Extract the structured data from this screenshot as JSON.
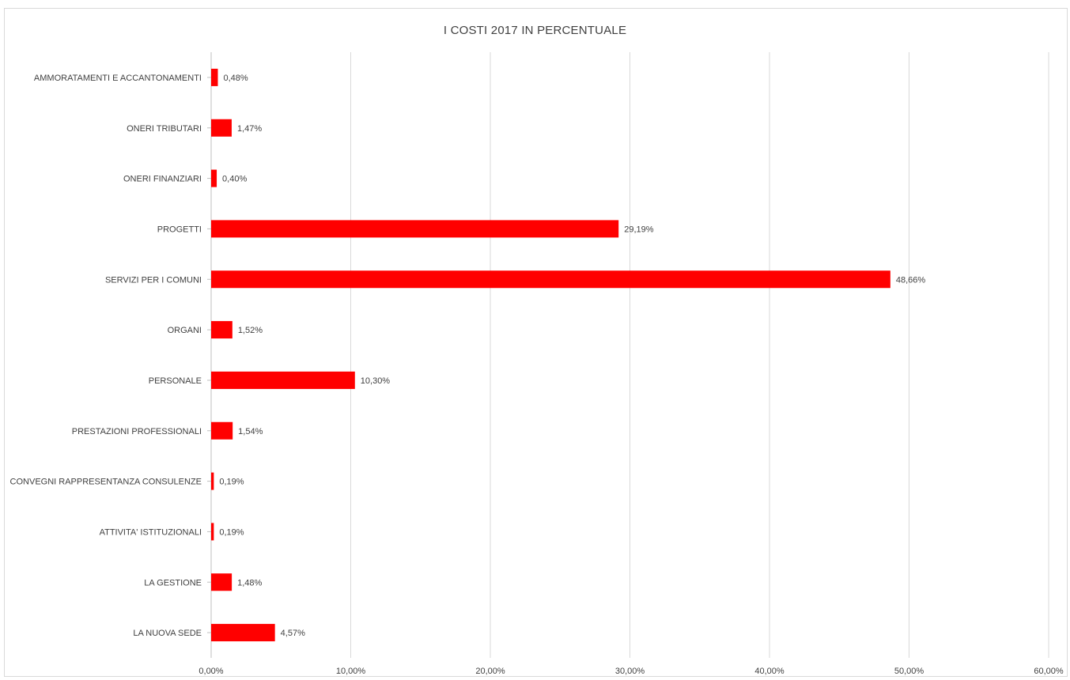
{
  "chart_data": {
    "type": "bar",
    "orientation": "horizontal",
    "title": "I COSTI 2017 IN PERCENTUALE",
    "xlabel": "",
    "ylabel": "",
    "categories": [
      "AMMORATAMENTI E ACCANTONAMENTI",
      "ONERI TRIBUTARI",
      "ONERI FINANZIARI",
      "PROGETTI",
      "SERVIZI PER I COMUNI",
      "ORGANI",
      "PERSONALE",
      "PRESTAZIONI PROFESSIONALI",
      "CONVEGNI RAPPRESENTANZA CONSULENZE",
      "ATTIVITA' ISTITUZIONALI",
      "LA GESTIONE",
      "LA NUOVA SEDE"
    ],
    "values": [
      0.48,
      1.47,
      0.4,
      29.19,
      48.66,
      1.52,
      10.3,
      1.54,
      0.19,
      0.19,
      1.48,
      4.57
    ],
    "value_labels": [
      "0,48%",
      "1,47%",
      "0,40%",
      "29,19%",
      "48,66%",
      "1,52%",
      "10,30%",
      "1,54%",
      "0,19%",
      "0,19%",
      "1,48%",
      "4,57%"
    ],
    "xlim": [
      0,
      60
    ],
    "x_ticks": [
      0,
      10,
      20,
      30,
      40,
      50,
      60
    ],
    "x_tick_labels": [
      "0,00%",
      "10,00%",
      "20,00%",
      "30,00%",
      "40,00%",
      "50,00%",
      "60,00%"
    ],
    "grid": "vertical",
    "legend": "none",
    "bar_color": "#ff0000",
    "grid_color": "#d9d9d9",
    "text_color": "#404040"
  }
}
